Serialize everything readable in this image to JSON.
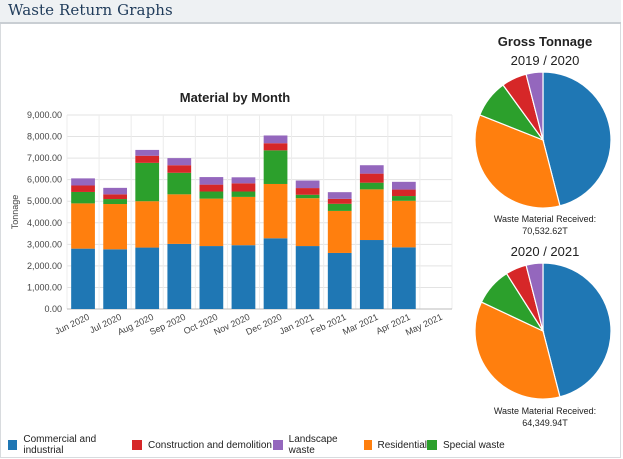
{
  "header": {
    "title": "Waste Return Graphs"
  },
  "bar_chart_title": "Material by Month",
  "gross": {
    "title": "Gross Tonnage",
    "pies": [
      {
        "period": "2019 / 2020",
        "caption_label": "Waste Material Received:",
        "caption_value": "70,532.62T"
      },
      {
        "period": "2020 / 2021",
        "caption_label": "Waste Material Received:",
        "caption_value": "64,349.94T"
      }
    ]
  },
  "legend": [
    {
      "label": "Commercial and industrial",
      "color": "#1f77b4"
    },
    {
      "label": "Construction and demolition",
      "color": "#d62728"
    },
    {
      "label": "Landscape waste",
      "color": "#9467bd"
    },
    {
      "label": "Residential",
      "color": "#ff7f0e"
    },
    {
      "label": "Special waste",
      "color": "#2ca02c"
    }
  ],
  "chart_data": [
    {
      "type": "bar",
      "stacked": true,
      "title": "Material by Month",
      "xlabel": "",
      "ylabel": "Tonnage",
      "ylim": [
        0,
        9000
      ],
      "yticks": [
        "0.00",
        "1,000.00",
        "2,000.00",
        "3,000.00",
        "4,000.00",
        "5,000.00",
        "6,000.00",
        "7,000.00",
        "8,000.00",
        "9,000.00"
      ],
      "grid": true,
      "categories": [
        "Jun 2020",
        "Jul 2020",
        "Aug 2020",
        "Sep 2020",
        "Oct 2020",
        "Nov 2020",
        "Dec 2020",
        "Jan 2021",
        "Feb 2021",
        "Mar 2021",
        "Apr 2021",
        "May 2021"
      ],
      "series": [
        {
          "name": "Commercial and industrial",
          "color": "#1f77b4",
          "values": [
            2800,
            2770,
            2850,
            3020,
            2920,
            2960,
            3280,
            2920,
            2600,
            3200,
            2860,
            0
          ]
        },
        {
          "name": "Residential",
          "color": "#ff7f0e",
          "values": [
            2100,
            2100,
            2150,
            2300,
            2200,
            2240,
            2520,
            2220,
            1950,
            2350,
            2160,
            0
          ]
        },
        {
          "name": "Special waste",
          "color": "#2ca02c",
          "values": [
            530,
            230,
            1780,
            1000,
            330,
            250,
            1560,
            160,
            330,
            310,
            220,
            0
          ]
        },
        {
          "name": "Construction and demolition",
          "color": "#d62728",
          "values": [
            300,
            220,
            330,
            350,
            320,
            380,
            330,
            310,
            230,
            420,
            300,
            0
          ]
        },
        {
          "name": "Landscape waste",
          "color": "#9467bd",
          "values": [
            330,
            300,
            270,
            330,
            350,
            280,
            360,
            350,
            310,
            390,
            360,
            0
          ]
        }
      ],
      "legend_position": "bottom"
    },
    {
      "type": "pie",
      "title": "2019 / 2020",
      "categories": [
        "Commercial and industrial",
        "Residential",
        "Special waste",
        "Construction and demolition",
        "Landscape waste"
      ],
      "values": [
        46,
        35,
        9,
        6,
        4
      ],
      "colors": [
        "#1f77b4",
        "#ff7f0e",
        "#2ca02c",
        "#d62728",
        "#9467bd"
      ]
    },
    {
      "type": "pie",
      "title": "2020 / 2021",
      "categories": [
        "Commercial and industrial",
        "Residential",
        "Special waste",
        "Construction and demolition",
        "Landscape waste"
      ],
      "values": [
        46,
        36,
        9,
        5,
        4
      ],
      "colors": [
        "#1f77b4",
        "#ff7f0e",
        "#2ca02c",
        "#d62728",
        "#9467bd"
      ]
    }
  ]
}
